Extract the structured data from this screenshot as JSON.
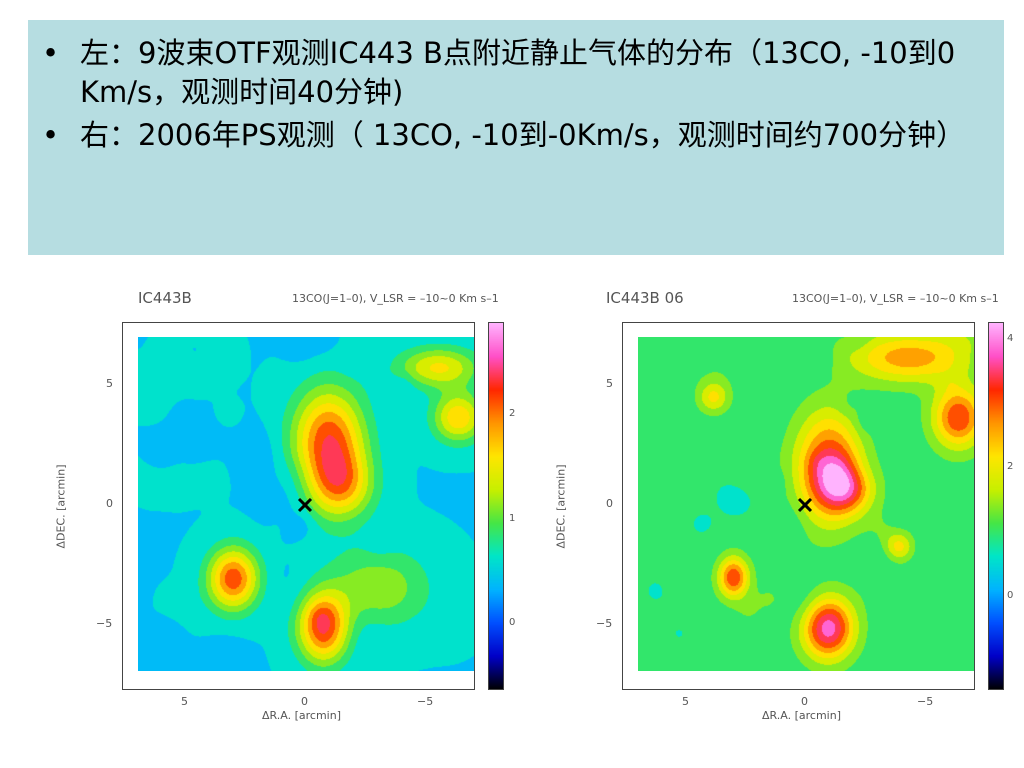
{
  "bullets": [
    {
      "marker": "•",
      "text": "左：9波束OTF观测IC443 B点附近静止气体的分布（13CO, -10到0 Km/s，观测时间40分钟)"
    },
    {
      "marker": "•",
      "text": "右：2006年PS观测（ 13CO, -10到-0Km/s，观测时间约700分钟）"
    }
  ],
  "maps": [
    {
      "title": "IC443B",
      "line_label": "13CO(J=1–0), V_LSR = –10~0 Km s–1",
      "xlabel": "ΔR.A. [arcmin]",
      "ylabel": "ΔDEC. [arcmin]",
      "xticks": [
        "5",
        "0",
        "−5"
      ],
      "yticks": [
        "5",
        "0",
        "−5"
      ],
      "cbar_ticks": [
        "2",
        "1",
        "0"
      ]
    },
    {
      "title": "IC443B 06",
      "line_label": "13CO(J=1–0), V_LSR = –10~0 Km s–1",
      "xlabel": "ΔR.A. [arcmin]",
      "ylabel": "ΔDEC. [arcmin]",
      "xticks": [
        "5",
        "0",
        "−5"
      ],
      "yticks": [
        "5",
        "0",
        "−5"
      ],
      "cbar_ticks": [
        "4",
        "2",
        "0"
      ]
    }
  ],
  "colormap": [
    "#000000",
    "#0000c8",
    "#0050ff",
    "#00b4ff",
    "#00e6c8",
    "#46e646",
    "#c8f000",
    "#ffe600",
    "#ff9600",
    "#ff2800",
    "#ff50c8",
    "#ffb4ff"
  ]
}
